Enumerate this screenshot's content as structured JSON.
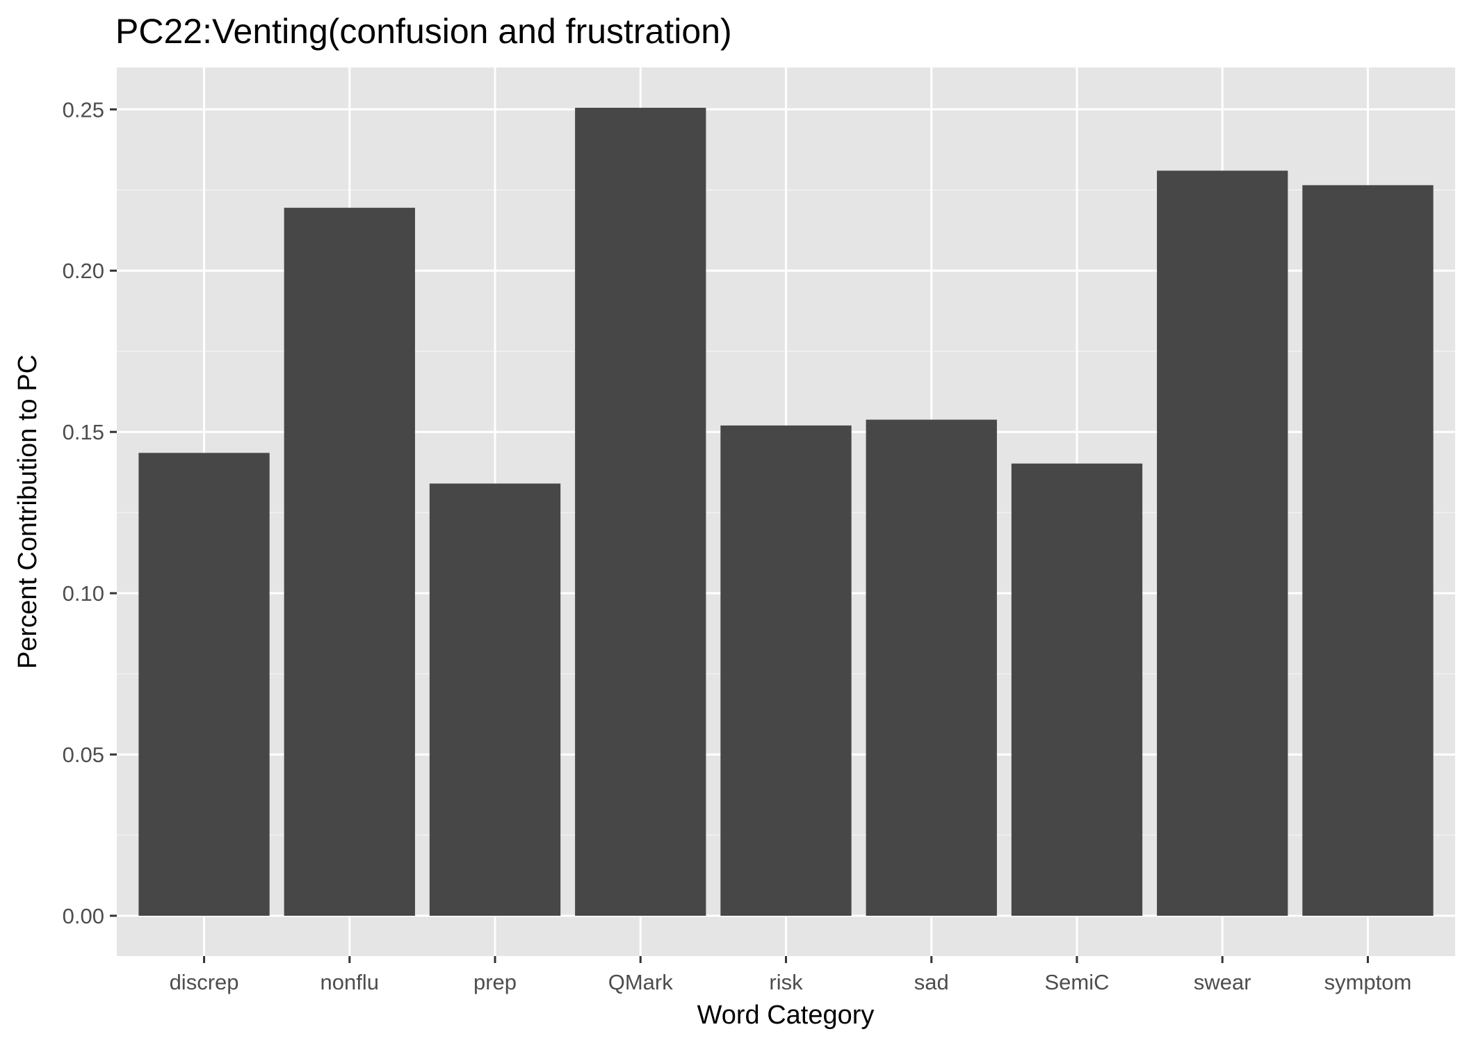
{
  "chart_data": {
    "type": "bar",
    "title": "PC22:Venting(confusion and frustration)",
    "xlabel": "Word Category",
    "ylabel": "Percent Contribution to PC",
    "categories": [
      "discrep",
      "nonflu",
      "prep",
      "QMark",
      "risk",
      "sad",
      "SemiC",
      "swear",
      "symptom"
    ],
    "values": [
      0.1435,
      0.2195,
      0.134,
      0.2505,
      0.152,
      0.1538,
      0.1402,
      0.231,
      0.2265
    ],
    "ylim": [
      -0.0125,
      0.263
    ],
    "yticks": [
      0.0,
      0.05,
      0.1,
      0.15,
      0.2,
      0.25
    ],
    "ytick_labels": [
      "0.00",
      "0.05",
      "0.10",
      "0.15",
      "0.20",
      "0.25"
    ],
    "grid": true,
    "legend": "none",
    "colors": {
      "panel_background": "#e5e5e5",
      "grid_major": "#ffffff",
      "grid_minor": "#f2f2f2",
      "bar_fill": "#474747",
      "tick_text": "#4d4d4d",
      "tick_mark": "#333333",
      "title_text": "#000000"
    }
  }
}
